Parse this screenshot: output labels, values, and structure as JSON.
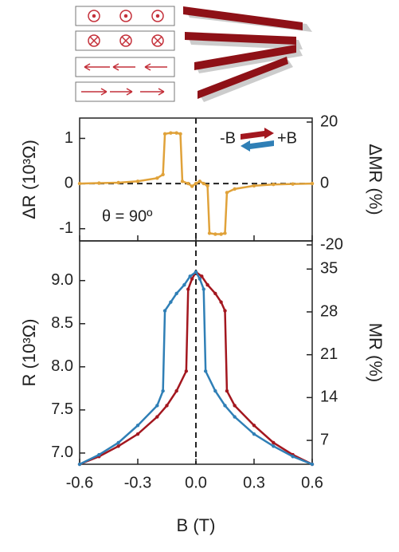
{
  "chart_data": [
    {
      "type": "line",
      "ylabel": "ΔR (10³Ω)",
      "y2label": "ΔMR (%)",
      "annotation": "θ = 90º",
      "sweep_labels": [
        "-B",
        "+B"
      ],
      "xlim": [
        -0.6,
        0.6
      ],
      "ylim": [
        -1.27,
        1.45
      ],
      "yticks": [
        -1,
        0,
        1
      ],
      "y2lim": [
        -18.7,
        21.3
      ],
      "y2ticks": [
        -20,
        0,
        20
      ],
      "zero_lines": true,
      "x": [
        -0.6,
        -0.5,
        -0.4,
        -0.3,
        -0.2,
        -0.17,
        -0.16,
        -0.13,
        -0.1,
        -0.08,
        -0.07,
        -0.04,
        -0.02,
        0,
        0.02,
        0.04,
        0.06,
        0.07,
        0.1,
        0.13,
        0.15,
        0.16,
        0.2,
        0.3,
        0.4,
        0.5,
        0.6
      ],
      "series": [
        {
          "color": "#e0a23a",
          "values": [
            0,
            0.01,
            0.02,
            0.05,
            0.12,
            0.2,
            1.1,
            1.12,
            1.12,
            1.1,
            0.05,
            0.0,
            -0.06,
            0,
            0.05,
            0.0,
            -0.05,
            -1.1,
            -1.12,
            -1.12,
            -1.1,
            -0.2,
            -0.12,
            -0.05,
            -0.02,
            -0.01,
            0
          ]
        }
      ]
    },
    {
      "type": "line",
      "xlabel": "B (T)",
      "ylabel": "R (10³Ω)",
      "y2label": "MR (%)",
      "xlim": [
        -0.6,
        0.6
      ],
      "xticks": [
        -0.6,
        -0.3,
        {
          "value": 0,
          "label": "0.0"
        },
        0.3,
        0.6
      ],
      "ylim": [
        6.87,
        9.46
      ],
      "yticks": [
        {
          "value": 7,
          "label": "7.0"
        },
        7.5,
        {
          "value": 8,
          "label": "8.0"
        },
        8.5,
        {
          "value": 9,
          "label": "9.0"
        }
      ],
      "y2lim": [
        3.1,
        39.6
      ],
      "y2ticks": [
        7,
        14,
        21,
        28,
        35
      ],
      "zero_lines": true,
      "series": [
        {
          "color": "#a3171f",
          "x": [
            -0.6,
            -0.5,
            -0.4,
            -0.3,
            -0.2,
            -0.15,
            -0.1,
            -0.05,
            -0.04,
            -0.02,
            0,
            0.03,
            0.06,
            0.1,
            0.13,
            0.15,
            0.16,
            0.2,
            0.3,
            0.4,
            0.5,
            0.6
          ],
          "values": [
            6.87,
            6.96,
            7.08,
            7.22,
            7.42,
            7.55,
            7.72,
            7.95,
            8.9,
            9.02,
            9.1,
            9.05,
            8.95,
            8.85,
            8.75,
            8.65,
            7.72,
            7.55,
            7.32,
            7.12,
            6.98,
            6.87
          ]
        },
        {
          "color": "#2f7fb6",
          "x": [
            -0.6,
            -0.5,
            -0.4,
            -0.3,
            -0.2,
            -0.17,
            -0.16,
            -0.13,
            -0.1,
            -0.06,
            -0.03,
            0,
            0.02,
            0.04,
            0.05,
            0.1,
            0.15,
            0.2,
            0.3,
            0.4,
            0.5,
            0.6
          ],
          "values": [
            6.87,
            6.98,
            7.12,
            7.32,
            7.55,
            7.72,
            8.65,
            8.75,
            8.85,
            8.95,
            9.05,
            9.1,
            9.02,
            8.9,
            7.95,
            7.72,
            7.55,
            7.42,
            7.22,
            7.08,
            6.96,
            6.87
          ]
        }
      ]
    }
  ]
}
